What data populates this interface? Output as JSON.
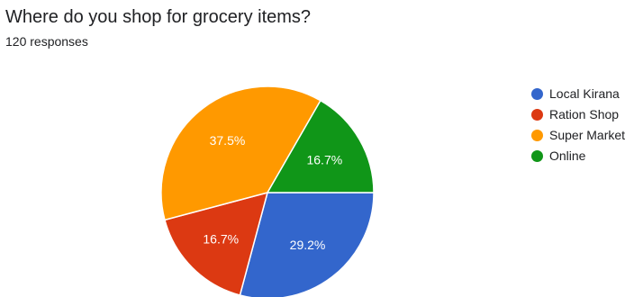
{
  "question": {
    "title": "Where do you shop for grocery items?",
    "responses": "120 responses"
  },
  "chart_data": {
    "type": "pie",
    "categories": [
      "Local Kirana",
      "Ration Shop",
      "Super Market",
      "Online"
    ],
    "values": [
      29.2,
      16.7,
      37.5,
      16.7
    ],
    "labels": [
      "29.2%",
      "16.7%",
      "37.5%",
      "16.7%"
    ],
    "colors": [
      "#3366cc",
      "#dc3912",
      "#ff9900",
      "#109618"
    ],
    "legend_position": "right"
  }
}
